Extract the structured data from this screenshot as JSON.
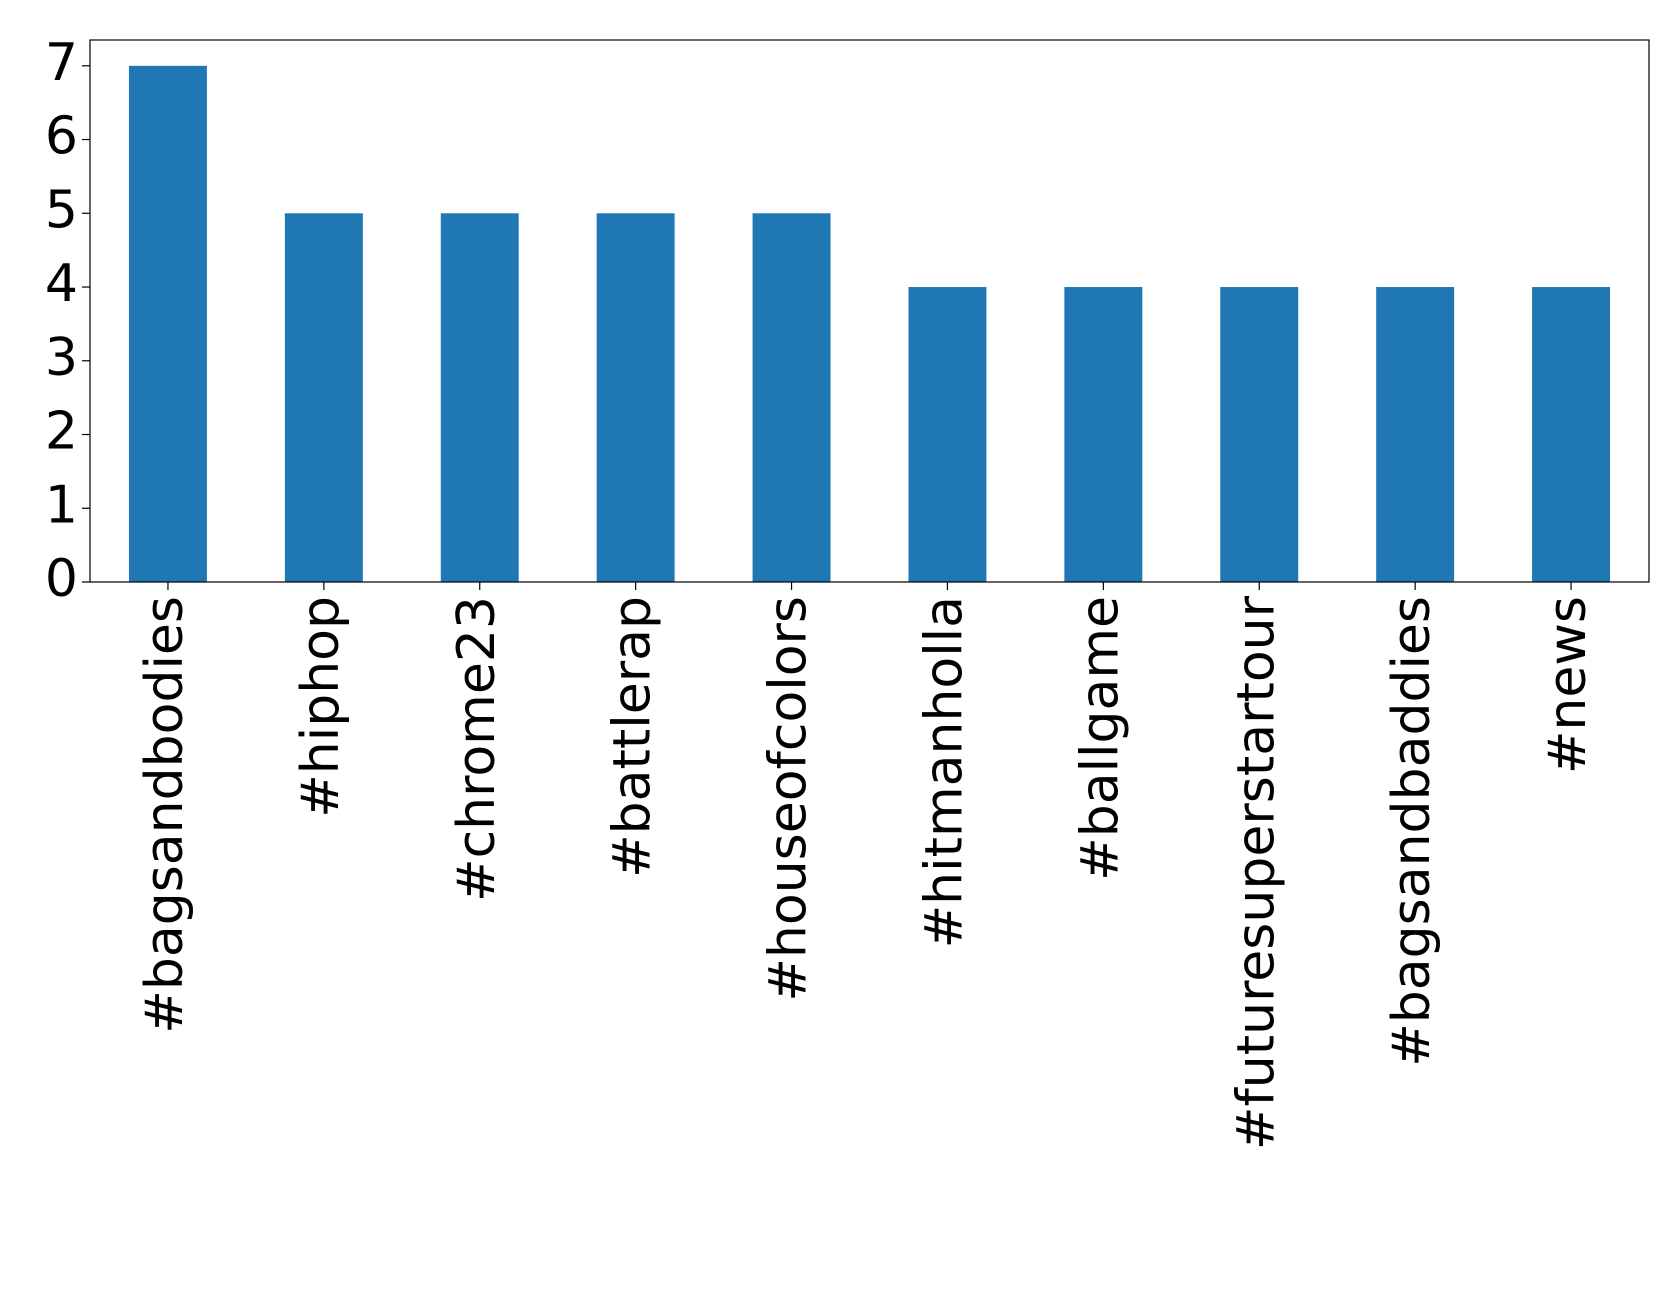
{
  "chart_data": {
    "type": "bar",
    "categories": [
      "#bagsandbodies",
      "#hiphop",
      "#chrome23",
      "#battlerap",
      "#houseofcolors",
      "#hitmanholla",
      "#ballgame",
      "#futuresuperstartour",
      "#bagsandbaddies",
      "#news"
    ],
    "values": [
      7,
      5,
      5,
      5,
      5,
      4,
      4,
      4,
      4,
      4
    ],
    "color": "#1f77b4",
    "ylim": [
      0,
      7.35
    ],
    "yticks": [
      0,
      1,
      2,
      3,
      4,
      5,
      6,
      7
    ],
    "grid": false
  }
}
